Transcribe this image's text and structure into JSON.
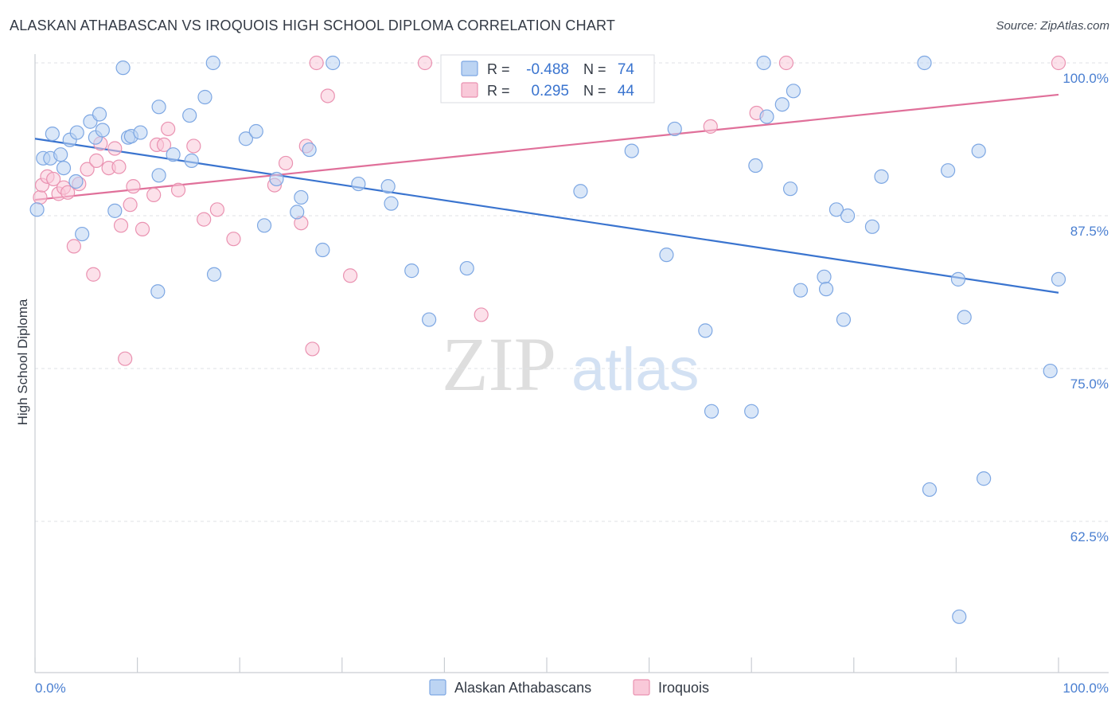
{
  "chart_data": {
    "type": "scatter",
    "title": "ALASKAN ATHABASCAN VS IROQUOIS HIGH SCHOOL DIPLOMA CORRELATION CHART",
    "source": "Source: ZipAtlas.com",
    "watermark": {
      "zip": "ZIP",
      "atlas": "atlas"
    },
    "ylabel": "High School Diploma",
    "xlim": [
      0,
      100
    ],
    "ylim": [
      50,
      101
    ],
    "x_tick_labels": {
      "left": "0.0%",
      "right": "100.0%"
    },
    "y_ticks": [
      {
        "value": 100,
        "label": "100.0%"
      },
      {
        "value": 87.5,
        "label": "87.5%"
      },
      {
        "value": 75,
        "label": "75.0%"
      },
      {
        "value": 62.5,
        "label": "62.5%"
      }
    ],
    "grid": true,
    "stats": {
      "r_label": "R =",
      "n_label": "N =",
      "rows": [
        {
          "series": "Alaskan Athabascans",
          "r": "-0.488",
          "n": "74"
        },
        {
          "series": "Iroquois",
          "r": "0.295",
          "n": "44"
        }
      ]
    },
    "colors": {
      "blue_fill": "#bcd4f3",
      "blue_stroke": "#7da7e3",
      "blue_line": "#3a74cf",
      "pink_fill": "#f9c9d9",
      "pink_stroke": "#ea92b1",
      "pink_line": "#e0709a",
      "tick_text": "#4a7fd1"
    },
    "series": [
      {
        "name": "Alaskan Athabascans",
        "trend": {
          "x0": 0,
          "y0": 93.8,
          "x1": 100,
          "y1": 81.2
        },
        "points": [
          [
            0.2,
            88.0
          ],
          [
            0.8,
            92.2
          ],
          [
            1.5,
            92.2
          ],
          [
            1.7,
            94.2
          ],
          [
            2.5,
            92.5
          ],
          [
            2.8,
            91.4
          ],
          [
            3.4,
            93.7
          ],
          [
            4.1,
            94.3
          ],
          [
            4.0,
            90.3
          ],
          [
            4.6,
            86.0
          ],
          [
            5.4,
            95.2
          ],
          [
            5.9,
            93.9
          ],
          [
            6.3,
            95.8
          ],
          [
            6.6,
            94.5
          ],
          [
            7.8,
            87.9
          ],
          [
            8.6,
            99.6
          ],
          [
            9.1,
            93.9
          ],
          [
            9.4,
            94.0
          ],
          [
            10.3,
            94.3
          ],
          [
            12.1,
            96.4
          ],
          [
            12.1,
            90.8
          ],
          [
            13.5,
            92.5
          ],
          [
            15.1,
            95.7
          ],
          [
            15.3,
            92.0
          ],
          [
            16.6,
            97.2
          ],
          [
            17.4,
            100.0
          ],
          [
            20.6,
            93.8
          ],
          [
            21.6,
            94.4
          ],
          [
            22.4,
            86.7
          ],
          [
            23.6,
            90.5
          ],
          [
            25.6,
            87.8
          ],
          [
            26.0,
            89.0
          ],
          [
            26.8,
            92.9
          ],
          [
            28.1,
            84.7
          ],
          [
            29.1,
            100.0
          ],
          [
            31.6,
            90.1
          ],
          [
            34.5,
            89.9
          ],
          [
            34.8,
            88.5
          ],
          [
            36.8,
            83.0
          ],
          [
            38.5,
            79.0
          ],
          [
            42.2,
            83.2
          ],
          [
            53.3,
            89.5
          ],
          [
            58.3,
            92.8
          ],
          [
            61.7,
            84.3
          ],
          [
            62.5,
            94.6
          ],
          [
            65.5,
            78.1
          ],
          [
            66.1,
            71.5
          ],
          [
            70.0,
            71.5
          ],
          [
            70.4,
            91.6
          ],
          [
            71.2,
            100.0
          ],
          [
            71.5,
            95.6
          ],
          [
            73.0,
            96.6
          ],
          [
            73.8,
            89.7
          ],
          [
            74.1,
            97.7
          ],
          [
            74.8,
            81.4
          ],
          [
            77.1,
            82.5
          ],
          [
            77.3,
            81.5
          ],
          [
            78.3,
            88.0
          ],
          [
            79.0,
            79.0
          ],
          [
            79.4,
            87.5
          ],
          [
            81.8,
            86.6
          ],
          [
            82.7,
            90.7
          ],
          [
            86.9,
            100.0
          ],
          [
            87.4,
            65.1
          ],
          [
            89.2,
            91.2
          ],
          [
            90.2,
            82.3
          ],
          [
            90.3,
            54.7
          ],
          [
            90.8,
            79.2
          ],
          [
            92.2,
            92.8
          ],
          [
            92.7,
            66.0
          ],
          [
            99.2,
            74.8
          ],
          [
            100.0,
            82.3
          ],
          [
            12.0,
            81.3
          ],
          [
            17.5,
            82.7
          ]
        ]
      },
      {
        "name": "Iroquois",
        "trend": {
          "x0": 0,
          "y0": 88.8,
          "x1": 100,
          "y1": 97.4
        },
        "points": [
          [
            0.5,
            89.0
          ],
          [
            0.7,
            90.0
          ],
          [
            1.2,
            90.7
          ],
          [
            1.8,
            90.5
          ],
          [
            2.3,
            89.3
          ],
          [
            2.8,
            89.8
          ],
          [
            3.2,
            89.4
          ],
          [
            3.8,
            85.0
          ],
          [
            4.3,
            90.1
          ],
          [
            5.1,
            91.3
          ],
          [
            5.7,
            82.7
          ],
          [
            6.0,
            92.0
          ],
          [
            6.4,
            93.4
          ],
          [
            7.2,
            91.4
          ],
          [
            7.8,
            93.0
          ],
          [
            8.2,
            91.5
          ],
          [
            8.4,
            86.7
          ],
          [
            8.8,
            75.8
          ],
          [
            9.3,
            88.4
          ],
          [
            9.6,
            89.9
          ],
          [
            10.5,
            86.4
          ],
          [
            11.6,
            89.2
          ],
          [
            11.9,
            93.3
          ],
          [
            12.6,
            93.3
          ],
          [
            13.0,
            94.6
          ],
          [
            14.0,
            89.6
          ],
          [
            15.5,
            93.2
          ],
          [
            16.5,
            87.2
          ],
          [
            17.8,
            88.0
          ],
          [
            19.4,
            85.6
          ],
          [
            23.4,
            90.0
          ],
          [
            24.5,
            91.8
          ],
          [
            26.0,
            86.9
          ],
          [
            26.5,
            93.2
          ],
          [
            27.1,
            76.6
          ],
          [
            27.5,
            100.0
          ],
          [
            28.6,
            97.3
          ],
          [
            30.8,
            82.6
          ],
          [
            38.1,
            100.0
          ],
          [
            43.6,
            79.4
          ],
          [
            66.0,
            94.8
          ],
          [
            70.5,
            95.9
          ],
          [
            73.4,
            100.0
          ],
          [
            100.0,
            100.0
          ]
        ]
      }
    ],
    "legend": {
      "position": "bottom-center",
      "items": [
        {
          "label": "Alaskan Athabascans"
        },
        {
          "label": "Iroquois"
        }
      ]
    }
  }
}
